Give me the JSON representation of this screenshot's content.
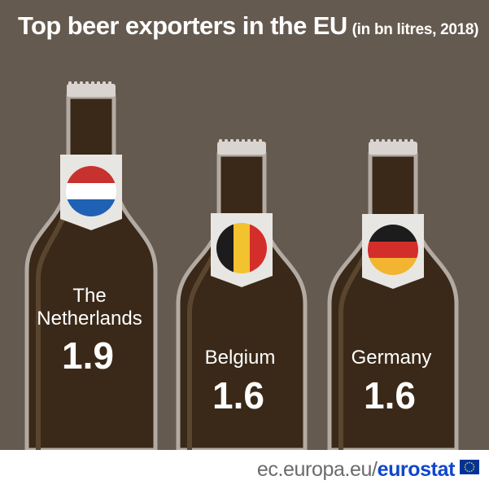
{
  "title": "Top beer exporters in the EU",
  "subtitle": "(in bn litres, 2018)",
  "chart_data": {
    "type": "bar",
    "categories": [
      "The Netherlands",
      "Belgium",
      "Germany"
    ],
    "values": [
      1.9,
      1.6,
      1.6
    ],
    "label_lines": [
      [
        "The",
        "Netherlands"
      ],
      [
        "Belgium"
      ],
      [
        "Germany"
      ]
    ],
    "value_labels": [
      "1.9",
      "1.6",
      "1.6"
    ],
    "flags": [
      "netherlands-flag",
      "belgium-flag",
      "germany-flag"
    ]
  },
  "footer": {
    "site": "ec.europa.eu/",
    "brand": "eurostat"
  },
  "colors": {
    "background": "#655a4f",
    "bottle": "#3a2918",
    "bottle_outline": "#b3aba3",
    "bottle_highlight": "#5a4630",
    "bottle_cap": "#d9d4cf",
    "label": "#e8e6e3",
    "text": "#ffffff",
    "brand": "#0e47cb",
    "eu_blue": "#003399",
    "eu_stars": "#ffcc00"
  }
}
